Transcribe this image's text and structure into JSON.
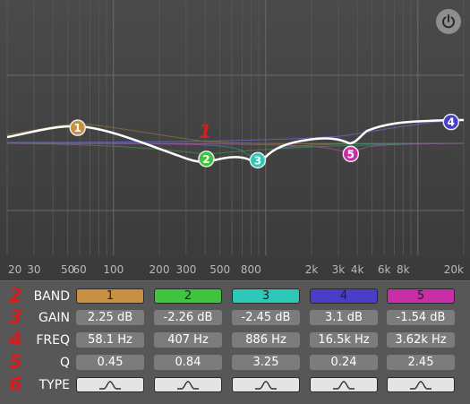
{
  "graph": {
    "annotation": "1",
    "freq_ticks": [
      "20",
      "30",
      "50",
      "60",
      "100",
      "200",
      "300",
      "500",
      "800",
      "2k",
      "3k",
      "4k",
      "6k",
      "8k",
      "20k"
    ],
    "bands": [
      {
        "label": "1",
        "color": "#c89040",
        "curve_color": "#8a7040"
      },
      {
        "label": "2",
        "color": "#3ec43e",
        "curve_color": "#4a8a4a"
      },
      {
        "label": "3",
        "color": "#2ec8b8",
        "curve_color": "#3a8a8a"
      },
      {
        "label": "4",
        "color": "#4a3ec8",
        "curve_color": "#6a6ad0"
      },
      {
        "label": "5",
        "color": "#c82ea8",
        "curve_color": "#a0509a"
      }
    ]
  },
  "controls": {
    "rows": [
      {
        "num": "2",
        "label": "BAND"
      },
      {
        "num": "3",
        "label": "GAIN"
      },
      {
        "num": "4",
        "label": "FREQ"
      },
      {
        "num": "5",
        "label": "Q"
      },
      {
        "num": "6",
        "label": "TYPE"
      }
    ],
    "bands": [
      {
        "band": "1",
        "gain": "2.25 dB",
        "freq": "58.1 Hz",
        "q": "0.45",
        "type_icon": "peak-filter-icon"
      },
      {
        "band": "2",
        "gain": "-2.26 dB",
        "freq": "407 Hz",
        "q": "0.84",
        "type_icon": "peak-filter-icon"
      },
      {
        "band": "3",
        "gain": "-2.45 dB",
        "freq": "886 Hz",
        "q": "3.25",
        "type_icon": "peak-filter-icon"
      },
      {
        "band": "4",
        "gain": "3.1 dB",
        "freq": "16.5k Hz",
        "q": "0.24",
        "type_icon": "peak-filter-icon"
      },
      {
        "band": "5",
        "gain": "-1.54 dB",
        "freq": "3.62k Hz",
        "q": "2.45",
        "type_icon": "peak-filter-icon"
      }
    ]
  },
  "power": {
    "icon": "power-icon"
  }
}
